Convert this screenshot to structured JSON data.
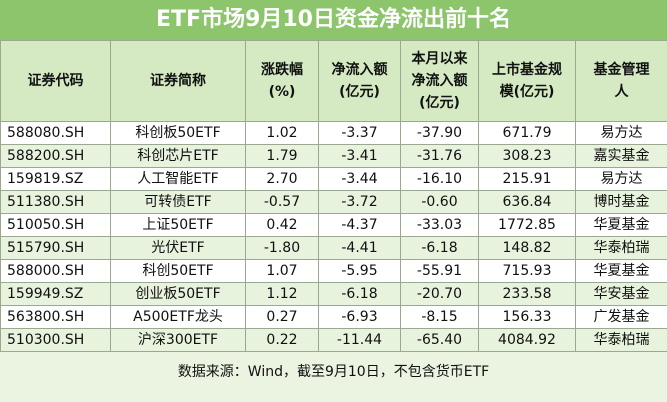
{
  "title": "ETF市场9月10日资金净流出前十名",
  "header": [
    [
      "证券代码"
    ],
    [
      "证券简称"
    ],
    [
      "涨跌幅",
      "(%)"
    ],
    [
      "净流入额",
      "(亿元)"
    ],
    [
      "本月以来",
      "净流入额",
      "(亿元)"
    ],
    [
      "上市基金规",
      "模(亿元)"
    ],
    [
      "基金管理",
      "人"
    ]
  ],
  "rows": [
    [
      "588080.SH",
      "科创板50ETF",
      "1.02",
      "-3.37",
      "-37.90",
      "671.79",
      "易方达"
    ],
    [
      "588200.SH",
      "科创芯片ETF",
      "1.79",
      "-3.41",
      "-31.76",
      "308.23",
      "嘉实基金"
    ],
    [
      "159819.SZ",
      "人工智能ETF",
      "2.70",
      "-3.44",
      "-16.10",
      "215.91",
      "易方达"
    ],
    [
      "511380.SH",
      "可转债ETF",
      "-0.57",
      "-3.72",
      "-0.60",
      "636.84",
      "博时基金"
    ],
    [
      "510050.SH",
      "上证50ETF",
      "0.42",
      "-4.37",
      "-33.03",
      "1772.85",
      "华夏基金"
    ],
    [
      "515790.SH",
      "光伏ETF",
      "-1.80",
      "-4.41",
      "-6.18",
      "148.82",
      "华泰柏瑞"
    ],
    [
      "588000.SH",
      "科创50ETF",
      "1.07",
      "-5.95",
      "-55.91",
      "715.93",
      "华夏基金"
    ],
    [
      "159949.SZ",
      "创业板50ETF",
      "1.12",
      "-6.18",
      "-20.70",
      "233.58",
      "华安基金"
    ],
    [
      "563800.SH",
      "A500ETF龙头",
      "0.27",
      "-6.93",
      "-8.15",
      "156.33",
      "广发基金"
    ],
    [
      "510300.SH",
      "沪深300ETF",
      "0.22",
      "-11.44",
      "-65.40",
      "4084.92",
      "华泰柏瑞"
    ]
  ],
  "footer": "数据来源：Wind，截至9月10日，不包含货币ETF"
}
